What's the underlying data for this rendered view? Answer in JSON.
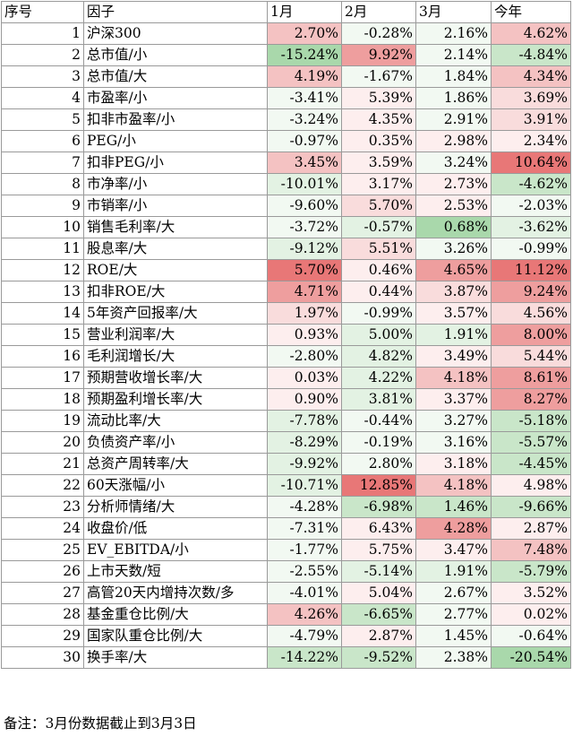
{
  "headers": [
    "序号",
    "因子",
    "1月",
    "2月",
    "3月",
    "今年"
  ],
  "rows": [
    {
      "idx": "1",
      "name": "沪深300",
      "v": [
        "2.70%",
        "-0.28%",
        "2.16%",
        "4.62%"
      ]
    },
    {
      "idx": "2",
      "name": "总市值/小",
      "v": [
        "-15.24%",
        "9.92%",
        "2.14%",
        "-4.84%"
      ]
    },
    {
      "idx": "3",
      "name": "总市值/大",
      "v": [
        "4.19%",
        "-1.67%",
        "1.84%",
        "4.34%"
      ]
    },
    {
      "idx": "4",
      "name": "市盈率/小",
      "v": [
        "-3.41%",
        "5.39%",
        "1.86%",
        "3.69%"
      ]
    },
    {
      "idx": "5",
      "name": "扣非市盈率/小",
      "v": [
        "-3.24%",
        "4.35%",
        "2.91%",
        "3.91%"
      ]
    },
    {
      "idx": "6",
      "name": "PEG/小",
      "v": [
        "-0.97%",
        "0.35%",
        "2.98%",
        "2.34%"
      ]
    },
    {
      "idx": "7",
      "name": "扣非PEG/小",
      "v": [
        "3.45%",
        "3.59%",
        "3.24%",
        "10.64%"
      ]
    },
    {
      "idx": "8",
      "name": "市净率/小",
      "v": [
        "-10.01%",
        "3.17%",
        "2.73%",
        "-4.62%"
      ]
    },
    {
      "idx": "9",
      "name": "市销率/小",
      "v": [
        "-9.60%",
        "5.70%",
        "2.53%",
        "-2.03%"
      ]
    },
    {
      "idx": "10",
      "name": "销售毛利率/大",
      "v": [
        "-3.72%",
        "-0.57%",
        "0.68%",
        "-3.62%"
      ]
    },
    {
      "idx": "11",
      "name": "股息率/大",
      "v": [
        "-9.12%",
        "5.51%",
        "3.26%",
        "-0.99%"
      ]
    },
    {
      "idx": "12",
      "name": "ROE/大",
      "v": [
        "5.70%",
        "0.46%",
        "4.65%",
        "11.12%"
      ]
    },
    {
      "idx": "13",
      "name": "扣非ROE/大",
      "v": [
        "4.71%",
        "0.44%",
        "3.87%",
        "9.24%"
      ]
    },
    {
      "idx": "14",
      "name": "5年资产回报率/大",
      "v": [
        "1.97%",
        "-0.99%",
        "3.57%",
        "4.56%"
      ]
    },
    {
      "idx": "15",
      "name": "营业利润率/大",
      "v": [
        "0.93%",
        "5.00%",
        "1.91%",
        "8.00%"
      ]
    },
    {
      "idx": "16",
      "name": "毛利润增长/大",
      "v": [
        "-2.80%",
        "4.82%",
        "3.49%",
        "5.44%"
      ]
    },
    {
      "idx": "17",
      "name": "预期营收增长率/大",
      "v": [
        "0.03%",
        "4.22%",
        "4.18%",
        "8.61%"
      ]
    },
    {
      "idx": "18",
      "name": "预期盈利增长率/大",
      "v": [
        "0.90%",
        "3.81%",
        "3.37%",
        "8.27%"
      ]
    },
    {
      "idx": "19",
      "name": "流动比率/大",
      "v": [
        "-7.78%",
        "-0.44%",
        "3.27%",
        "-5.18%"
      ]
    },
    {
      "idx": "20",
      "name": "负债资产率/小",
      "v": [
        "-8.29%",
        "-0.19%",
        "3.16%",
        "-5.57%"
      ]
    },
    {
      "idx": "21",
      "name": "总资产周转率/大",
      "v": [
        "-9.92%",
        "2.80%",
        "3.18%",
        "-4.45%"
      ]
    },
    {
      "idx": "22",
      "name": "60天涨幅/小",
      "v": [
        "-10.71%",
        "12.85%",
        "4.18%",
        "4.98%"
      ]
    },
    {
      "idx": "23",
      "name": "分析师情绪/大",
      "v": [
        "-4.28%",
        "-6.98%",
        "1.46%",
        "-9.66%"
      ]
    },
    {
      "idx": "24",
      "name": "收盘价/低",
      "v": [
        "-7.31%",
        "6.43%",
        "4.28%",
        "2.87%"
      ]
    },
    {
      "idx": "25",
      "name": "EV_EBITDA/小",
      "v": [
        "-1.77%",
        "5.75%",
        "3.47%",
        "7.48%"
      ]
    },
    {
      "idx": "26",
      "name": "上市天数/短",
      "v": [
        "-2.55%",
        "-5.14%",
        "1.91%",
        "-5.79%"
      ]
    },
    {
      "idx": "27",
      "name": "高管20天内增持次数/多",
      "v": [
        "-4.01%",
        "5.04%",
        "2.67%",
        "3.52%"
      ]
    },
    {
      "idx": "28",
      "name": "基金重仓比例/大",
      "v": [
        "4.26%",
        "-6.65%",
        "2.77%",
        "0.02%"
      ]
    },
    {
      "idx": "29",
      "name": "国家队重仓比例/大",
      "v": [
        "-4.79%",
        "2.87%",
        "1.45%",
        "-0.64%"
      ]
    },
    {
      "idx": "30",
      "name": "换手率/大",
      "v": [
        "-14.22%",
        "-9.52%",
        "2.38%",
        "-20.54%"
      ]
    }
  ],
  "colors": [
    "#ffffff",
    "#f2f9f2",
    "#e3f2e3",
    "#c9e6c9",
    "#a9d8ab",
    "#fdeeee",
    "#f9dcdc",
    "#f4c2c2",
    "#ee9e9e",
    "#e87777"
  ],
  "cell_shades": [
    [
      7,
      1,
      1,
      7
    ],
    [
      4,
      8,
      1,
      3
    ],
    [
      7,
      1,
      1,
      7
    ],
    [
      1,
      5,
      1,
      6
    ],
    [
      1,
      5,
      1,
      6
    ],
    [
      1,
      5,
      5,
      5
    ],
    [
      7,
      5,
      1,
      9
    ],
    [
      2,
      5,
      5,
      3
    ],
    [
      1,
      6,
      5,
      1
    ],
    [
      1,
      2,
      4,
      2
    ],
    [
      2,
      6,
      1,
      1
    ],
    [
      9,
      5,
      8,
      9
    ],
    [
      8,
      5,
      6,
      8
    ],
    [
      6,
      1,
      5,
      6
    ],
    [
      5,
      2,
      2,
      8
    ],
    [
      1,
      2,
      5,
      6
    ],
    [
      5,
      2,
      7,
      8
    ],
    [
      5,
      2,
      5,
      8
    ],
    [
      2,
      1,
      1,
      3
    ],
    [
      2,
      1,
      1,
      3
    ],
    [
      2,
      1,
      5,
      3
    ],
    [
      2,
      9,
      7,
      5
    ],
    [
      1,
      3,
      3,
      3
    ],
    [
      1,
      5,
      8,
      5
    ],
    [
      1,
      5,
      5,
      7
    ],
    [
      1,
      2,
      2,
      3
    ],
    [
      1,
      5,
      1,
      5
    ],
    [
      7,
      3,
      1,
      5
    ],
    [
      1,
      5,
      1,
      1
    ],
    [
      3,
      3,
      1,
      4
    ]
  ],
  "footnote": "备注：3月份数据截止到3月3日"
}
